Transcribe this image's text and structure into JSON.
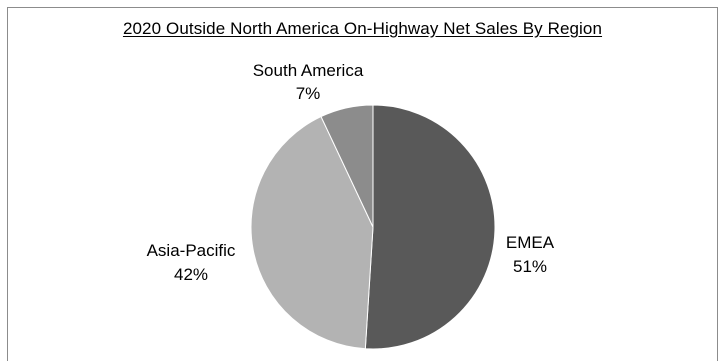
{
  "chart_data": {
    "type": "pie",
    "title": "2020 Outside North America On-Highway Net Sales By Region",
    "start_angle_deg": 0,
    "direction": "clockwise",
    "slices": [
      {
        "name": "EMEA",
        "label": "51%",
        "value": 51,
        "color": "#595959"
      },
      {
        "name": "Asia-Pacific",
        "label": "42%",
        "value": 42,
        "color": "#b3b3b3"
      },
      {
        "name": "South America",
        "label": "7%",
        "value": 7,
        "color": "#8c8c8c"
      }
    ]
  }
}
